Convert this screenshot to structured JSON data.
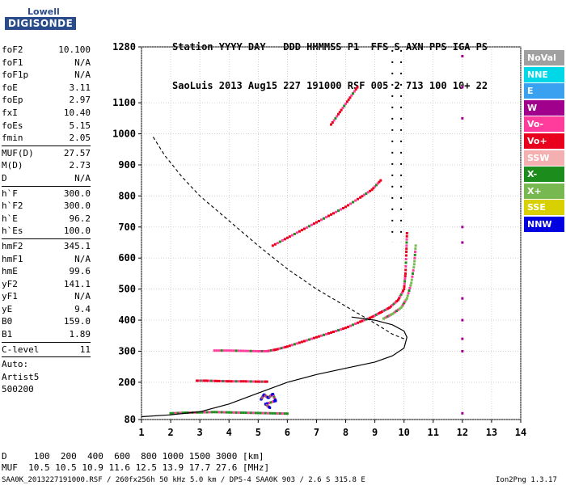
{
  "logo": {
    "line1": "Lowell",
    "line2": "DIGISONDE"
  },
  "header": {
    "row1": "Station YYYY DAY   DDD HHMMSS P1  FFS S AXN PPS IGA PS",
    "row2": "SaoLuis 2013 Aug15 227 191000 RSF 005 2 713 100 10+ 22"
  },
  "params": [
    {
      "k": "foF2",
      "v": "10.100"
    },
    {
      "k": "foF1",
      "v": "N/A"
    },
    {
      "k": "foF1p",
      "v": "N/A"
    },
    {
      "k": "foE",
      "v": "3.11"
    },
    {
      "k": "foEp",
      "v": "2.97"
    },
    {
      "k": "fxI",
      "v": "10.40"
    },
    {
      "k": "foEs",
      "v": "5.15"
    },
    {
      "k": "fmin",
      "v": "2.05"
    },
    {
      "sep": true
    },
    {
      "k": "MUF(D)",
      "v": "27.57"
    },
    {
      "k": "M(D)",
      "v": "2.73"
    },
    {
      "k": "D",
      "v": "N/A"
    },
    {
      "sep": true
    },
    {
      "k": "h`F",
      "v": "300.0"
    },
    {
      "k": "h`F2",
      "v": "300.0"
    },
    {
      "k": "h`E",
      "v": "96.2"
    },
    {
      "k": "h`Es",
      "v": "100.0"
    },
    {
      "sep": true
    },
    {
      "k": "hmF2",
      "v": "345.1"
    },
    {
      "k": "hmF1",
      "v": "N/A"
    },
    {
      "k": "hmE",
      "v": "99.6"
    },
    {
      "k": "yF2",
      "v": "141.1"
    },
    {
      "k": "yF1",
      "v": "N/A"
    },
    {
      "k": "yE",
      "v": "9.4"
    },
    {
      "k": "B0",
      "v": "159.0"
    },
    {
      "k": "B1",
      "v": "1.89"
    },
    {
      "sep": true
    },
    {
      "k": "C-level",
      "v": "11"
    },
    {
      "sep": true
    },
    {
      "t": "Auto:"
    },
    {
      "t": "Artist5"
    },
    {
      "t": "500200"
    }
  ],
  "legend": [
    {
      "label": "NoVal",
      "color": "#a0a0a0"
    },
    {
      "label": "NNE",
      "color": "#00d8e8"
    },
    {
      "label": "E",
      "color": "#3aa0f0"
    },
    {
      "label": "W",
      "color": "#a0008c"
    },
    {
      "label": "Vo-",
      "color": "#ff3c9c"
    },
    {
      "label": "Vo+",
      "color": "#e8001c"
    },
    {
      "label": "SSW",
      "color": "#f4b0b0"
    },
    {
      "label": "X-",
      "color": "#1c8c1c"
    },
    {
      "label": "X+",
      "color": "#78b850"
    },
    {
      "label": "SSE",
      "color": "#d8d000"
    },
    {
      "label": "NNW",
      "color": "#0000e0"
    }
  ],
  "footer": {
    "d_row": "D     100  200  400  600  800 1000 1500 3000 [km]",
    "muf_row": "MUF  10.5 10.5 10.9 11.6 12.5 13.9 17.7 27.6 [MHz]",
    "info": "SAA0K_2013227191000.RSF / 260fx256h 50 kHz 5.0 km / DPS-4 SAA0K 903 / 2.6 S 315.8 E",
    "version": "Ion2Png 1.3.17"
  },
  "chart_data": {
    "type": "scatter",
    "title": "",
    "xlabel": "",
    "ylabel": "",
    "xlim": [
      1,
      14
    ],
    "ylim": [
      80,
      1280
    ],
    "xticks": [
      1,
      2,
      3,
      4,
      5,
      6,
      7,
      8,
      9,
      10,
      11,
      12,
      13,
      14
    ],
    "yticks": [
      80,
      200,
      300,
      400,
      500,
      600,
      700,
      800,
      900,
      1000,
      1100,
      1280
    ],
    "grid": true,
    "marker_lines": {
      "foF2": 10.1,
      "fxI": 10.4,
      "foE": 3.11,
      "foEs": 5.15
    },
    "series": [
      {
        "name": "F2 O-trace",
        "color": "#e8001c",
        "x": [
          5.3,
          5.6,
          6.0,
          6.5,
          7.0,
          7.5,
          8.0,
          8.5,
          8.9,
          9.2,
          9.5,
          9.8,
          10.0,
          10.05,
          10.08,
          10.1
        ],
        "y": [
          300,
          305,
          315,
          330,
          345,
          360,
          375,
          395,
          410,
          425,
          440,
          465,
          500,
          550,
          620,
          680
        ]
      },
      {
        "name": "F2 X-trace",
        "color": "#78b850",
        "x": [
          9.3,
          9.6,
          9.9,
          10.1,
          10.25,
          10.35,
          10.4
        ],
        "y": [
          405,
          420,
          440,
          470,
          520,
          580,
          640
        ]
      },
      {
        "name": "2F2 trace",
        "color": "#e8001c",
        "x": [
          5.5,
          6.0,
          6.5,
          7.0,
          7.5,
          8.0,
          8.5,
          8.9,
          9.2
        ],
        "y": [
          640,
          665,
          690,
          715,
          740,
          765,
          795,
          820,
          850
        ]
      },
      {
        "name": "3F2 trace",
        "color": "#e8001c",
        "x": [
          7.5,
          7.8,
          8.1,
          8.4
        ],
        "y": [
          1030,
          1070,
          1110,
          1150
        ]
      },
      {
        "name": "F low trace",
        "color": "#ff3c9c",
        "x": [
          3.5,
          4.0,
          4.5,
          5.0,
          5.3
        ],
        "y": [
          302,
          302,
          301,
          300,
          300
        ]
      },
      {
        "name": "E trace",
        "color": "#e8001c",
        "x": [
          2.9,
          3.2,
          3.6,
          4.0,
          4.5,
          5.0,
          5.3
        ],
        "y": [
          205,
          205,
          204,
          203,
          203,
          202,
          202
        ]
      },
      {
        "name": "Es trace",
        "color": "#1c8c1c",
        "x": [
          2.0,
          2.5,
          3.0,
          3.5,
          4.0,
          4.5,
          5.0,
          5.5,
          6.0
        ],
        "y": [
          100,
          102,
          103,
          104,
          103,
          102,
          101,
          100,
          99
        ]
      },
      {
        "name": "NNW cluster",
        "color": "#0000e0",
        "x": [
          5.1,
          5.2,
          5.35,
          5.5,
          5.6,
          5.25,
          5.4
        ],
        "y": [
          145,
          160,
          150,
          162,
          140,
          130,
          118
        ]
      },
      {
        "name": "12 MHz interference",
        "color": "#a0008c",
        "x": [
          12,
          12,
          12,
          12,
          12,
          12,
          12,
          12,
          12,
          12
        ],
        "y": [
          1250,
          1150,
          1050,
          700,
          650,
          470,
          400,
          340,
          300,
          100
        ]
      }
    ],
    "profile_solid": {
      "x": [
        1.0,
        2.0,
        3.0,
        4.0,
        5.0,
        6.0,
        7.0,
        8.0,
        9.0,
        9.6,
        10.0,
        10.1,
        10.0,
        9.6,
        9.0,
        8.2
      ],
      "y": [
        89,
        95,
        105,
        130,
        165,
        200,
        225,
        245,
        265,
        285,
        310,
        345,
        365,
        385,
        400,
        410
      ]
    },
    "profile_dashed": {
      "x": [
        1.4,
        1.8,
        2.4,
        3.0,
        4.0,
        5.0,
        6.0,
        7.0,
        8.0,
        9.0,
        9.6,
        10.0
      ],
      "y": [
        990,
        930,
        860,
        800,
        720,
        640,
        565,
        500,
        445,
        390,
        355,
        340
      ]
    }
  }
}
